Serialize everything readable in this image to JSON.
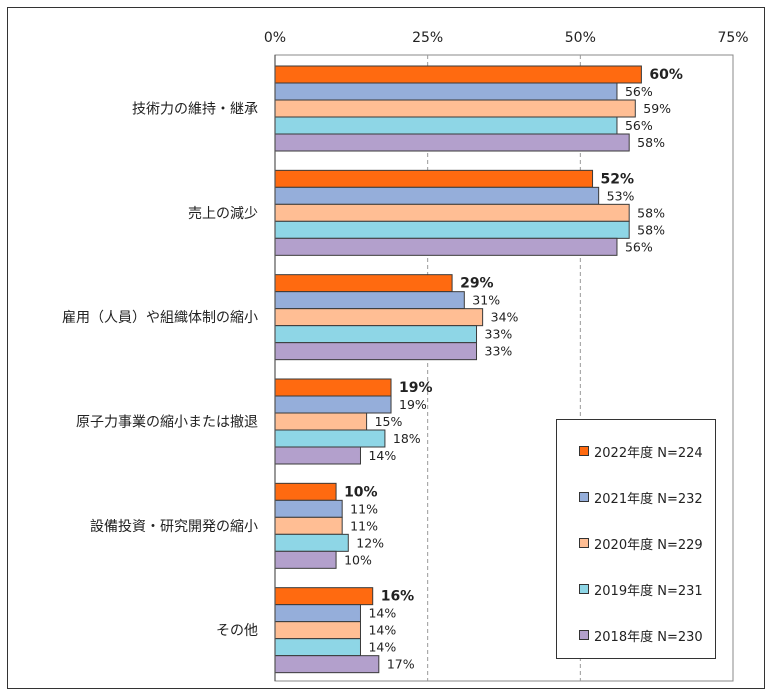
{
  "chart_data": {
    "type": "bar",
    "orientation": "horizontal",
    "categories": [
      "技術力の維持・継承",
      "売上の減少",
      "雇用（人員）や組織体制の縮小",
      "原子力事業の縮小または撤退",
      "設備投資・研究開発の縮小",
      "その他"
    ],
    "series": [
      {
        "name": "2022年度 N=224",
        "color": "#FF6A10",
        "values": [
          60,
          52,
          29,
          19,
          10,
          16
        ]
      },
      {
        "name": "2021年度 N=232",
        "color": "#95AEDA",
        "values": [
          56,
          53,
          31,
          19,
          11,
          14
        ]
      },
      {
        "name": "2020年度 N=229",
        "color": "#FFBE94",
        "values": [
          59,
          58,
          34,
          15,
          11,
          14
        ]
      },
      {
        "name": "2019年度 N=231",
        "color": "#8ED6E6",
        "values": [
          56,
          58,
          33,
          18,
          12,
          14
        ]
      },
      {
        "name": "2018年度 N=230",
        "color": "#B3A0CC",
        "values": [
          58,
          56,
          33,
          14,
          10,
          17
        ]
      }
    ],
    "xlim": [
      0,
      75
    ],
    "xticks": [
      0,
      25,
      50,
      75
    ],
    "tick_labels": [
      "0%",
      "25%",
      "50%",
      "75%"
    ],
    "value_suffix": "%",
    "grid": "vertical dashed",
    "legend_position": "bottom-right",
    "highlight_series": "2022年度 N=224",
    "title": "",
    "xlabel": "",
    "ylabel": ""
  }
}
